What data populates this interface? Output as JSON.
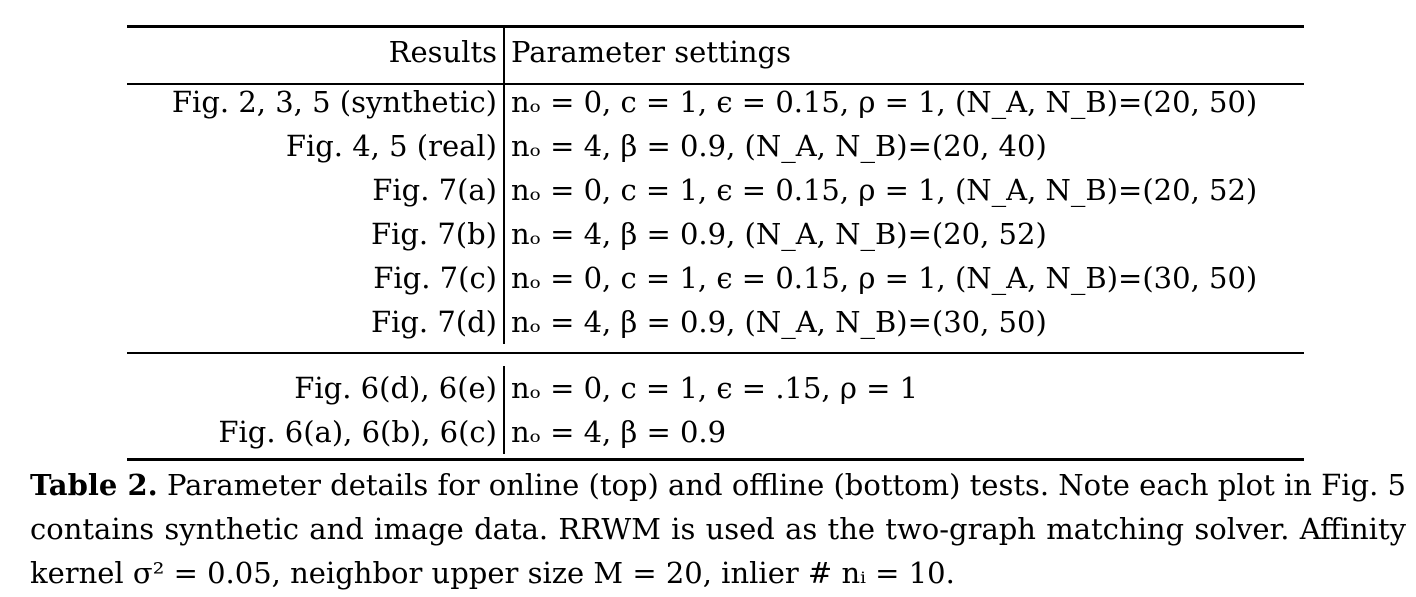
{
  "table": {
    "header": {
      "col1": "Results",
      "col2": "Parameter settings"
    },
    "online_rows": [
      {
        "result": "Fig. 2, 3, 5 (synthetic)",
        "params": "nₒ = 0, c = 1, ϵ = 0.15, ρ = 1, (N_A, N_B)=(20, 50)"
      },
      {
        "result": "Fig. 4, 5 (real)",
        "params": "nₒ = 4, β = 0.9, (N_A, N_B)=(20, 40)"
      },
      {
        "result": "Fig. 7(a)",
        "params": "nₒ = 0, c = 1, ϵ = 0.15, ρ = 1, (N_A, N_B)=(20, 52)"
      },
      {
        "result": "Fig. 7(b)",
        "params": "nₒ = 4, β = 0.9, (N_A, N_B)=(20, 52)"
      },
      {
        "result": "Fig. 7(c)",
        "params": "nₒ = 0, c = 1, ϵ = 0.15, ρ = 1, (N_A, N_B)=(30, 50)"
      },
      {
        "result": "Fig. 7(d)",
        "params": "nₒ = 4, β = 0.9, (N_A, N_B)=(30, 50)"
      }
    ],
    "offline_rows": [
      {
        "result": "Fig. 6(d), 6(e)",
        "params": "nₒ = 0, c = 1, ϵ = .15, ρ = 1"
      },
      {
        "result": "Fig. 6(a), 6(b), 6(c)",
        "params": "nₒ = 4, β = 0.9"
      }
    ]
  },
  "caption": {
    "label": "Table 2.",
    "text": "Parameter details for online (top) and offline (bottom) tests. Note each plot in Fig. 5 contains synthetic and image data. RRWM is used as the two-graph matching solver. Affinity kernel σ² = 0.05, neighbor upper size M = 20, inlier # nᵢ = 10."
  }
}
